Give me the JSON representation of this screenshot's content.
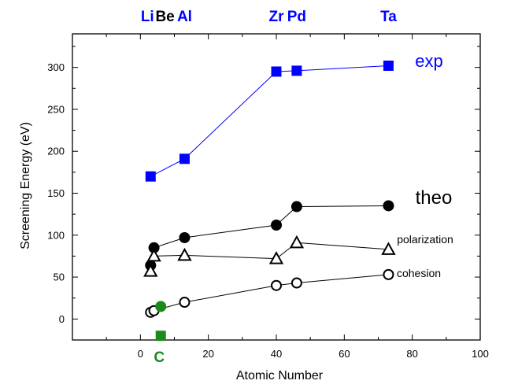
{
  "chart_data": {
    "type": "scatter",
    "title": "",
    "xlabel": "Atomic Number",
    "ylabel": "Screening Energy  (eV)",
    "xlim": [
      -20,
      100
    ],
    "ylim": [
      -25,
      340
    ],
    "x_ticks": [
      0,
      20,
      40,
      60,
      80,
      100
    ],
    "y_ticks": [
      0,
      50,
      100,
      150,
      200,
      250,
      300
    ],
    "grid": false,
    "colors": {
      "exp": "#0000ff",
      "theo": "#000000",
      "carbon": "#1a8a1a"
    },
    "element_labels": [
      {
        "symbol": "Li",
        "z": 3,
        "color": "#0000ff"
      },
      {
        "symbol": "Be",
        "z": 4,
        "color": "#000000"
      },
      {
        "symbol": "Al",
        "z": 13,
        "color": "#0000ff"
      },
      {
        "symbol": "Zr",
        "z": 40,
        "color": "#0000ff"
      },
      {
        "symbol": "Pd",
        "z": 46,
        "color": "#0000ff"
      },
      {
        "symbol": "Ta",
        "z": 73,
        "color": "#0000ff"
      }
    ],
    "carbon_label": {
      "symbol": "C",
      "z": 6
    },
    "series": [
      {
        "name": "exp",
        "marker": "square-filled",
        "color": "#0000ff",
        "x": [
          3,
          13,
          40,
          46,
          73
        ],
        "y": [
          170,
          191,
          295,
          296,
          302
        ]
      },
      {
        "name": "theo",
        "marker": "circle-filled",
        "color": "#000000",
        "x": [
          3,
          4,
          13,
          40,
          46,
          73
        ],
        "y": [
          64,
          85,
          97,
          112,
          134,
          135
        ]
      },
      {
        "name": "polarization",
        "marker": "triangle-open",
        "color": "#000000",
        "x": [
          3,
          4,
          13,
          40,
          46,
          73
        ],
        "y": [
          57,
          75,
          76,
          72,
          91,
          83
        ]
      },
      {
        "name": "cohesion",
        "marker": "circle-open",
        "color": "#000000",
        "x": [
          3,
          4,
          13,
          40,
          46,
          73
        ],
        "y": [
          8,
          10,
          20,
          40,
          43,
          53
        ]
      },
      {
        "name": "",
        "marker": "circle-filled",
        "color": "#1a8a1a",
        "connected": false,
        "x": [
          6
        ],
        "y": [
          15
        ]
      },
      {
        "name": "",
        "marker": "square-filled",
        "color": "#1a8a1a",
        "connected": false,
        "x": [
          6
        ],
        "y": [
          -20
        ]
      }
    ]
  }
}
